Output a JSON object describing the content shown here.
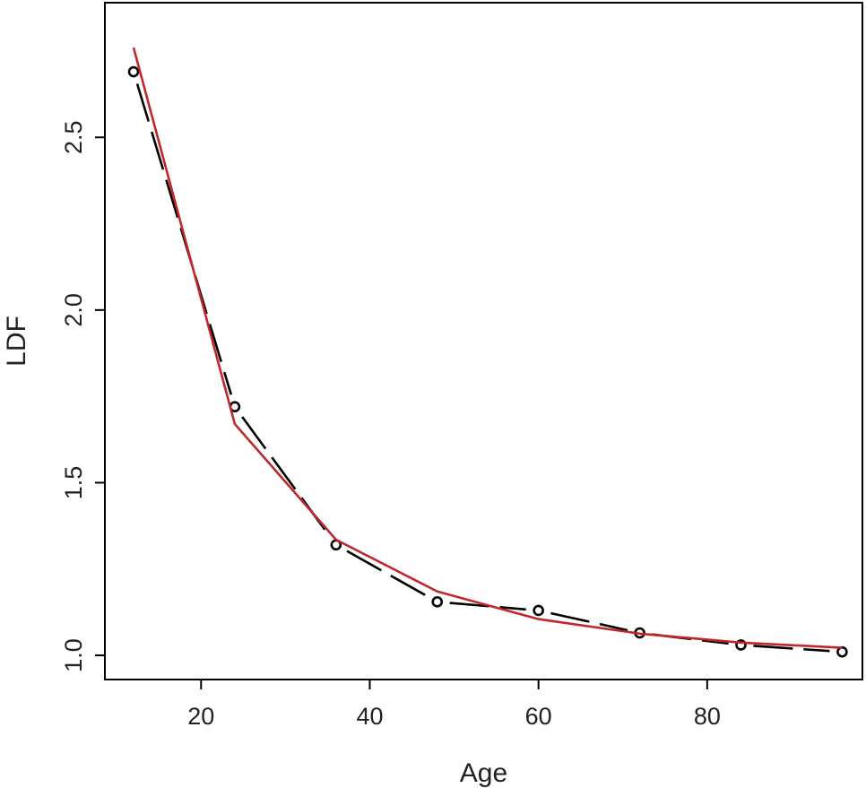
{
  "chart_data": {
    "type": "line",
    "xlabel": "Age",
    "ylabel": "LDF",
    "xlim": [
      8.6,
      98.4
    ],
    "ylim": [
      0.93,
      2.89
    ],
    "x_ticks": [
      20,
      40,
      60,
      80
    ],
    "y_ticks": [
      1.0,
      1.5,
      2.0,
      2.5
    ],
    "x_tick_labels": [
      "20",
      "40",
      "60",
      "80"
    ],
    "y_tick_labels": [
      "1.0",
      "1.5",
      "2.0",
      "2.5"
    ],
    "grid": false,
    "legend": "none",
    "series": [
      {
        "style": "dashed-with-circles",
        "color": "#000000",
        "x": [
          12,
          24,
          36,
          48,
          60,
          72,
          84,
          96
        ],
        "y": [
          2.69,
          1.72,
          1.32,
          1.155,
          1.13,
          1.065,
          1.03,
          1.01
        ]
      },
      {
        "style": "solid",
        "color": "#c0272d",
        "x": [
          12,
          24,
          36,
          48,
          60,
          72,
          84,
          96
        ],
        "y": [
          2.76,
          1.67,
          1.335,
          1.185,
          1.105,
          1.063,
          1.037,
          1.022
        ]
      }
    ]
  }
}
